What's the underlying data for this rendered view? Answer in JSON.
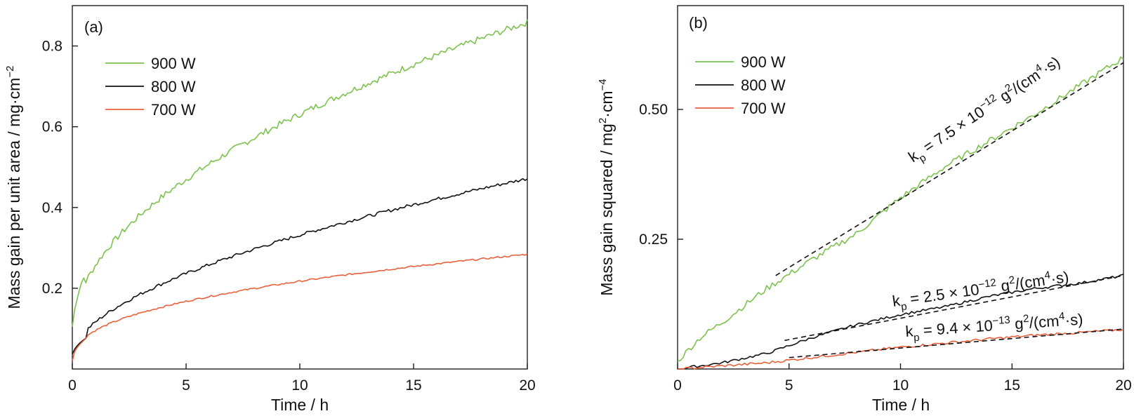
{
  "colors": {
    "900 W": "#7cc24d",
    "800 W": "#111111",
    "700 W": "#e8603c",
    "fit": "#111111"
  },
  "chart_data": [
    {
      "type": "line",
      "panel_label": "(a)",
      "xlabel": "Time / h",
      "ylabel": "Mass gain per unit area / mg·cm",
      "ylabel_sup": "−2",
      "xlim": [
        0,
        20
      ],
      "ylim": [
        0,
        0.9
      ],
      "xticks": [
        0,
        5,
        10,
        15,
        20
      ],
      "yticks": [
        0.2,
        0.4,
        0.6,
        0.8
      ],
      "ytick_labels": [
        "0.2",
        "0.4",
        "0.6",
        "0.8"
      ],
      "legend_position": "top-left",
      "series": [
        {
          "name": "900 W",
          "t0": 0,
          "y0": 0.08,
          "tshift": 0.02,
          "coef": 0.174,
          "exp": 0.5,
          "noise": 0.008
        },
        {
          "name": "800 W",
          "t0": 0,
          "y0": 0.03,
          "tshift": 0.01,
          "coef": 0.085,
          "exp": 0.55,
          "noise": 0.004
        },
        {
          "name": "700 W",
          "t0": 0,
          "y0": 0.02,
          "tshift": 0.0,
          "coef": 0.075,
          "exp": 0.42,
          "noise": 0.002
        }
      ]
    },
    {
      "type": "line",
      "panel_label": "(b)",
      "xlabel": "Time / h",
      "ylabel": "Mass gain squared / mg",
      "ylabel_sup1": "2",
      "ylabel_mid": "·cm",
      "ylabel_sup2": "−4",
      "xlim": [
        0,
        20
      ],
      "ylim": [
        0,
        0.7
      ],
      "xticks": [
        0,
        5,
        10,
        15,
        20
      ],
      "yticks": [
        0.25,
        0.5
      ],
      "ytick_labels": [
        "0.25",
        "0.50"
      ],
      "legend_position": "top-left",
      "series": [
        {
          "name": "900 W",
          "x": [
            0,
            1,
            2,
            4,
            6,
            8,
            10,
            12,
            14,
            16,
            18,
            20
          ],
          "y": [
            0.015,
            0.06,
            0.09,
            0.155,
            0.21,
            0.26,
            0.33,
            0.39,
            0.44,
            0.49,
            0.545,
            0.6
          ]
        },
        {
          "name": "800 W",
          "x": [
            0,
            2,
            4,
            6,
            8,
            10,
            12,
            14,
            16,
            18,
            20
          ],
          "y": [
            0.0,
            0.012,
            0.03,
            0.06,
            0.085,
            0.105,
            0.12,
            0.14,
            0.155,
            0.165,
            0.18
          ]
        },
        {
          "name": "700 W",
          "x": [
            0,
            2,
            4,
            6,
            8,
            10,
            12,
            14,
            16,
            18,
            20
          ],
          "y": [
            0.0,
            0.006,
            0.012,
            0.022,
            0.032,
            0.042,
            0.05,
            0.058,
            0.065,
            0.07,
            0.076
          ]
        }
      ],
      "fits": [
        {
          "name": "900 W fit",
          "x": [
            4.4,
            20
          ],
          "y": [
            0.18,
            0.59
          ],
          "label_prefix": "k",
          "label_sub": "p",
          "label_mid": " = 7.5 × 10",
          "label_exp": "−12",
          "label_unit": " g",
          "label_unit_sup": "2",
          "label_unit_mid": "/(cm",
          "label_unit_sup2": "4",
          "label_unit_end": "·s)"
        },
        {
          "name": "800 W fit",
          "x": [
            4.8,
            20
          ],
          "y": [
            0.055,
            0.18
          ],
          "label_prefix": "k",
          "label_sub": "p",
          "label_mid": " = 2.5 × 10",
          "label_exp": "−12",
          "label_unit": " g",
          "label_unit_sup": "2",
          "label_unit_mid": "/(cm",
          "label_unit_sup2": "4",
          "label_unit_end": "·s)"
        },
        {
          "name": "700 W fit",
          "x": [
            5,
            20
          ],
          "y": [
            0.022,
            0.077
          ],
          "label_prefix": "k",
          "label_sub": "p",
          "label_mid": " = 9.4 × 10",
          "label_exp": "−13",
          "label_unit": " g",
          "label_unit_sup": "2",
          "label_unit_mid": "/(cm",
          "label_unit_sup2": "4",
          "label_unit_end": "·s)"
        }
      ]
    }
  ]
}
